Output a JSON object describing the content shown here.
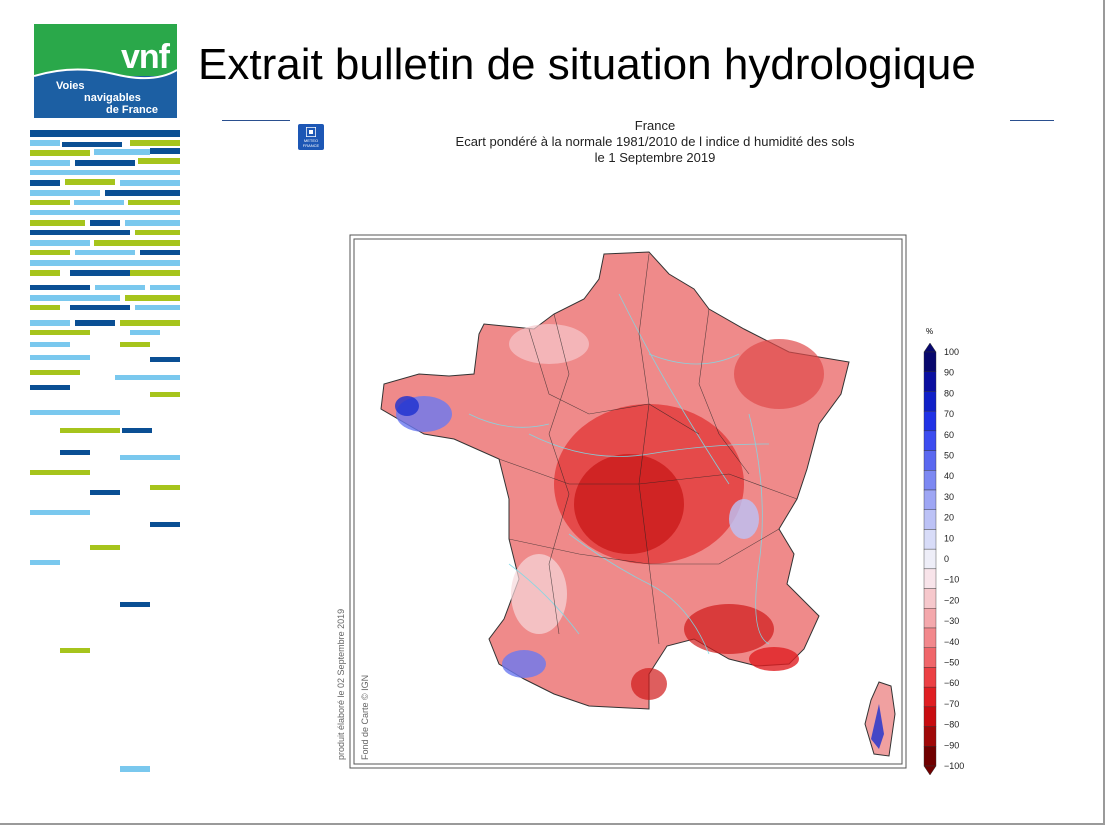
{
  "logo": {
    "brand": "vnf",
    "line1": "Voies",
    "line2": "navigables",
    "line3": "de France"
  },
  "slide_title": "Extrait bulletin de situation hydrologique",
  "meteo_logo": {
    "l1": "METEO",
    "l2": "FRANCE"
  },
  "chart": {
    "region": "France",
    "title": "Ecart pondéré à la normale 1981/2010 de l indice d humidité des sols",
    "date": "le 1 Septembre 2019",
    "credit_produced": "produit élaboré le 02 Septembre 2019",
    "credit_map": "Fond de Carte © IGN"
  },
  "legend": {
    "unit": "%",
    "labels": [
      "100",
      "90",
      "80",
      "70",
      "60",
      "50",
      "40",
      "30",
      "20",
      "10",
      "0",
      "−10",
      "−20",
      "−30",
      "−40",
      "−50",
      "−60",
      "−70",
      "−80",
      "−90",
      "−100"
    ],
    "colors": [
      "#08086e",
      "#0a0fa0",
      "#1020c8",
      "#2032e6",
      "#3c4cf0",
      "#5a68f0",
      "#7c88f2",
      "#9ea6f4",
      "#bcc2f6",
      "#d8dcf8",
      "#eeeef8",
      "#f8e4ea",
      "#f6c8cc",
      "#f4a8ac",
      "#f2888c",
      "#f0666a",
      "#ec4044",
      "#e01e22",
      "#c80c10",
      "#a00808",
      "#700000"
    ]
  },
  "colors": {
    "vnf_green": "#2aa84a",
    "vnf_blue": "#1c5fa3",
    "stripe_green": "#a6c41c",
    "stripe_light": "#7ac8ee",
    "stripe_dark": "#0a4f94"
  }
}
